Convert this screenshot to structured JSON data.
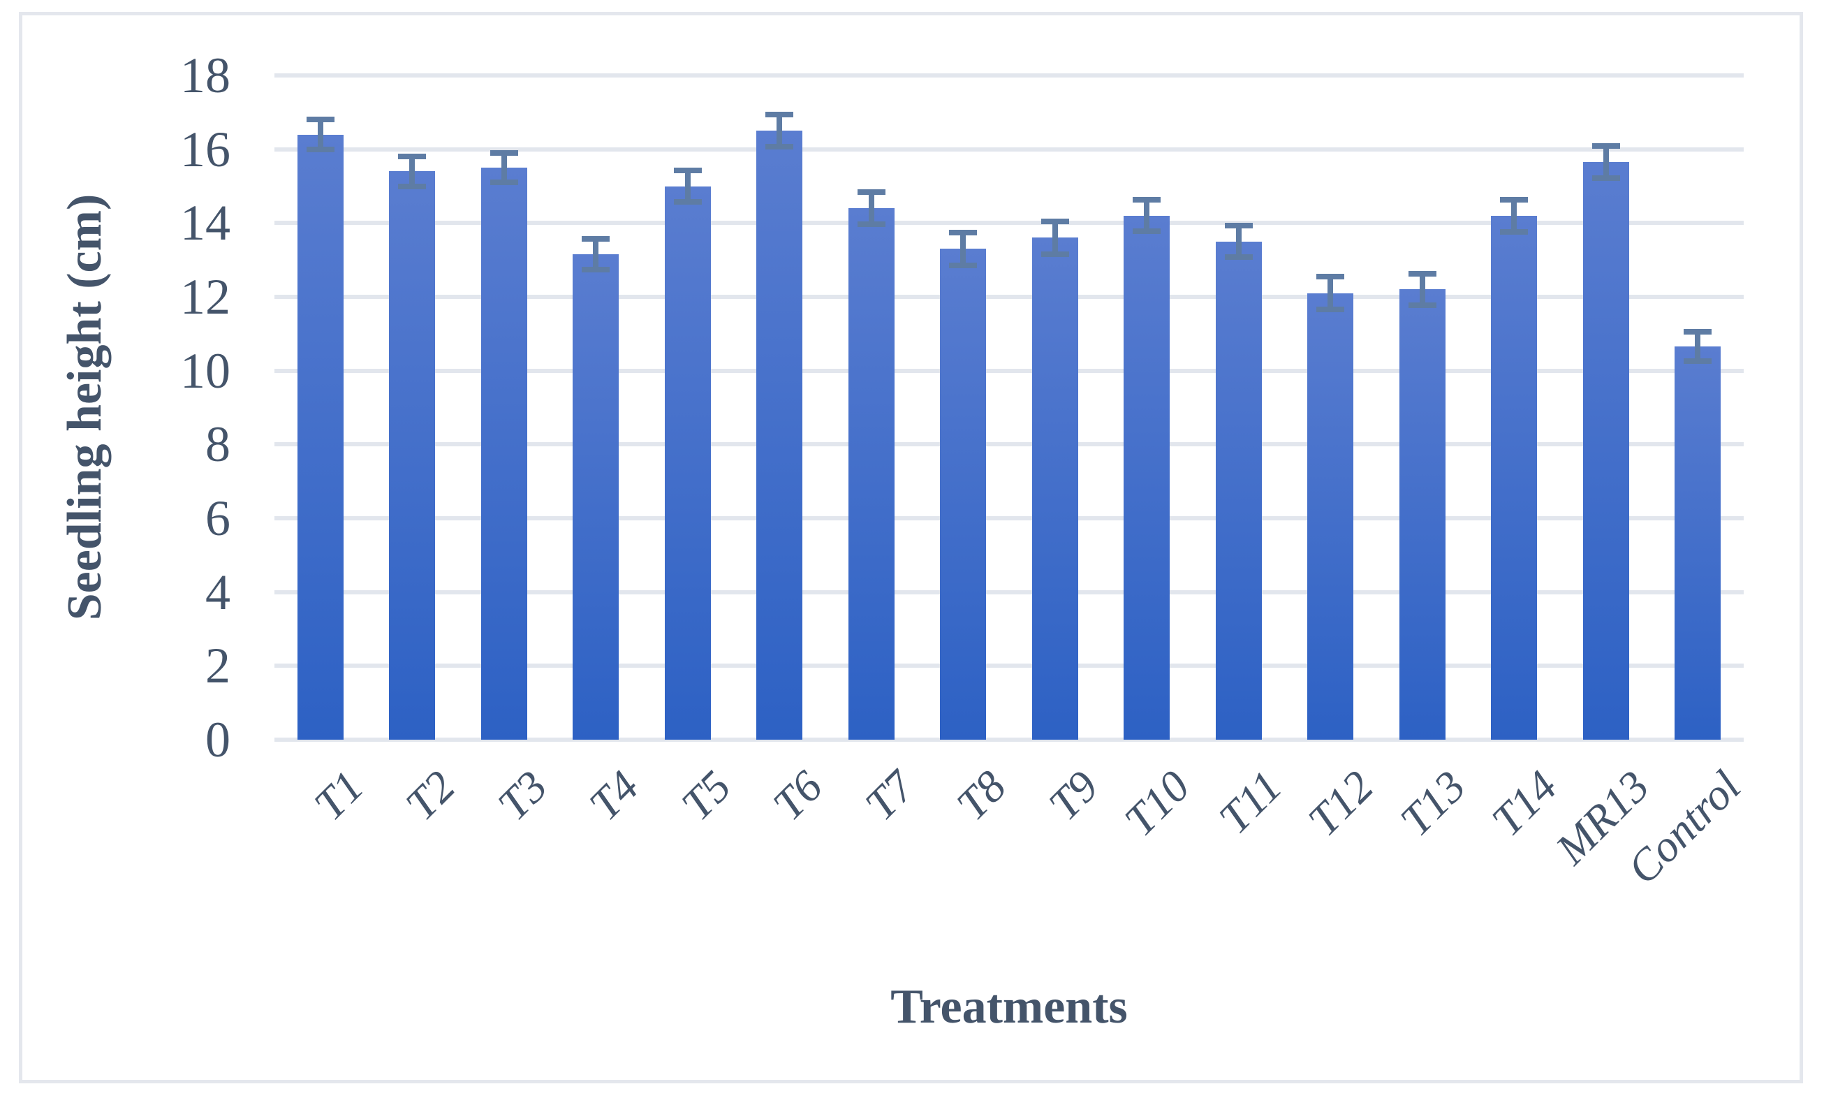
{
  "figure": {
    "background_color": "#FFFFFF",
    "border_color": "#E4E7ED"
  },
  "chart_data": {
    "type": "bar",
    "title": "",
    "xlabel": "Treatments",
    "ylabel": "Seedling height (cm)",
    "categories": [
      "T1",
      "T2",
      "T3",
      "T4",
      "T5",
      "T6",
      "T7",
      "T8",
      "T9",
      "T10",
      "T11",
      "T12",
      "T13",
      "T14",
      "MR13",
      "Control"
    ],
    "values": [
      16.4,
      15.4,
      15.5,
      13.15,
      15.0,
      16.5,
      14.4,
      13.3,
      13.6,
      14.2,
      13.5,
      12.1,
      12.2,
      14.2,
      15.65,
      10.65
    ],
    "error_bars": [
      0.4,
      0.4,
      0.4,
      0.42,
      0.43,
      0.44,
      0.44,
      0.44,
      0.44,
      0.43,
      0.43,
      0.44,
      0.43,
      0.44,
      0.43,
      0.4
    ],
    "yticks": [
      0,
      2,
      4,
      6,
      8,
      10,
      12,
      14,
      16,
      18
    ],
    "ylim": [
      0,
      18
    ],
    "grid": "horizontal",
    "legend_position": "none",
    "colors": {
      "bar_gradient_top": "#5A7DD0",
      "bar_gradient_bottom": "#2D61C4",
      "error_bar": "#5E7CA4",
      "gridline": "#E2E6ED",
      "text": "#44546A"
    }
  }
}
